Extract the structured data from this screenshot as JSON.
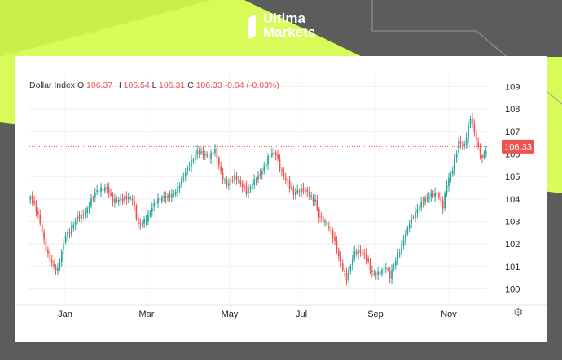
{
  "brand": {
    "line1": "Ultima",
    "line2": "Markets"
  },
  "legend": {
    "symbol": "Dollar Index",
    "open_label": "O",
    "open": "106.37",
    "high_label": "H",
    "high": "106.54",
    "low_label": "L",
    "low": "106.31",
    "close_label": "C",
    "close": "106.33",
    "change": "-0.04 (-0.03%)"
  },
  "last_price_label": "106.33",
  "icons": {
    "settings": "gear-icon",
    "logo": "ultima-logo-icon"
  },
  "colors": {
    "up": "#26a69a",
    "down": "#ef5350",
    "lime": "#d8fb5a",
    "dark": "#5c5c5c"
  },
  "chart_data": {
    "type": "candlestick",
    "title": "Dollar Index",
    "x_ticks": [
      "Jan",
      "Mar",
      "May",
      "Jul",
      "Sep",
      "Nov"
    ],
    "y_ticks": [
      100,
      101,
      102,
      103,
      104,
      105,
      106,
      107,
      108,
      109
    ],
    "ylim": [
      99.3,
      109.7
    ],
    "last_price": 106.33,
    "grid": true,
    "legend_position": "top-left",
    "anchor_points": [
      {
        "x": 0,
        "close": 104.1
      },
      {
        "x": 4,
        "close": 103.1
      },
      {
        "x": 8,
        "close": 101.8
      },
      {
        "x": 11,
        "close": 101.3
      },
      {
        "x": 14,
        "close": 100.9
      },
      {
        "x": 18,
        "close": 102.2
      },
      {
        "x": 20,
        "close": 102.4
      },
      {
        "x": 24,
        "close": 103.3
      },
      {
        "x": 29,
        "close": 103.6
      },
      {
        "x": 34,
        "close": 104.2
      },
      {
        "x": 39,
        "close": 104.6
      },
      {
        "x": 42,
        "close": 104.1
      },
      {
        "x": 47,
        "close": 103.8
      },
      {
        "x": 52,
        "close": 104.0
      },
      {
        "x": 55,
        "close": 103.0
      },
      {
        "x": 60,
        "close": 103.2
      },
      {
        "x": 64,
        "close": 103.7
      },
      {
        "x": 68,
        "close": 104.2
      },
      {
        "x": 72,
        "close": 104.3
      },
      {
        "x": 75,
        "close": 104.4
      },
      {
        "x": 78,
        "close": 104.8
      },
      {
        "x": 82,
        "close": 105.7
      },
      {
        "x": 85,
        "close": 106.3
      },
      {
        "x": 88,
        "close": 106.1
      },
      {
        "x": 91,
        "close": 105.7
      },
      {
        "x": 94,
        "close": 106.0
      },
      {
        "x": 97,
        "close": 105.2
      },
      {
        "x": 100,
        "close": 104.8
      },
      {
        "x": 104,
        "close": 105.0
      },
      {
        "x": 107,
        "close": 104.5
      },
      {
        "x": 110,
        "close": 104.2
      },
      {
        "x": 114,
        "close": 105.0
      },
      {
        "x": 118,
        "close": 105.3
      },
      {
        "x": 122,
        "close": 105.8
      },
      {
        "x": 125,
        "close": 105.9
      },
      {
        "x": 128,
        "close": 105.3
      },
      {
        "x": 131,
        "close": 104.9
      },
      {
        "x": 134,
        "close": 104.2
      },
      {
        "x": 137,
        "close": 104.2
      },
      {
        "x": 141,
        "close": 104.3
      },
      {
        "x": 145,
        "close": 104.1
      },
      {
        "x": 147,
        "close": 103.3
      },
      {
        "x": 151,
        "close": 102.7
      },
      {
        "x": 154,
        "close": 102.2
      },
      {
        "x": 158,
        "close": 101.3
      },
      {
        "x": 161,
        "close": 100.6
      },
      {
        "x": 165,
        "close": 101.5
      },
      {
        "x": 168,
        "close": 101.5
      },
      {
        "x": 171,
        "close": 101.4
      },
      {
        "x": 174,
        "close": 100.9
      },
      {
        "x": 178,
        "close": 100.7
      },
      {
        "x": 181,
        "close": 100.8
      },
      {
        "x": 183,
        "close": 100.4
      },
      {
        "x": 186,
        "close": 101.3
      },
      {
        "x": 190,
        "close": 102.4
      },
      {
        "x": 193,
        "close": 102.9
      },
      {
        "x": 196,
        "close": 103.2
      },
      {
        "x": 200,
        "close": 103.9
      },
      {
        "x": 204,
        "close": 104.4
      },
      {
        "x": 207,
        "close": 104.3
      },
      {
        "x": 210,
        "close": 103.5
      },
      {
        "x": 212,
        "close": 104.5
      },
      {
        "x": 215,
        "close": 105.3
      },
      {
        "x": 218,
        "close": 106.7
      },
      {
        "x": 221,
        "close": 106.5
      },
      {
        "x": 224,
        "close": 107.5
      },
      {
        "x": 226,
        "close": 106.8
      },
      {
        "x": 228,
        "close": 106.1
      },
      {
        "x": 230,
        "close": 105.8
      },
      {
        "x": 232,
        "close": 106.3
      }
    ],
    "total_sessions": 233
  }
}
